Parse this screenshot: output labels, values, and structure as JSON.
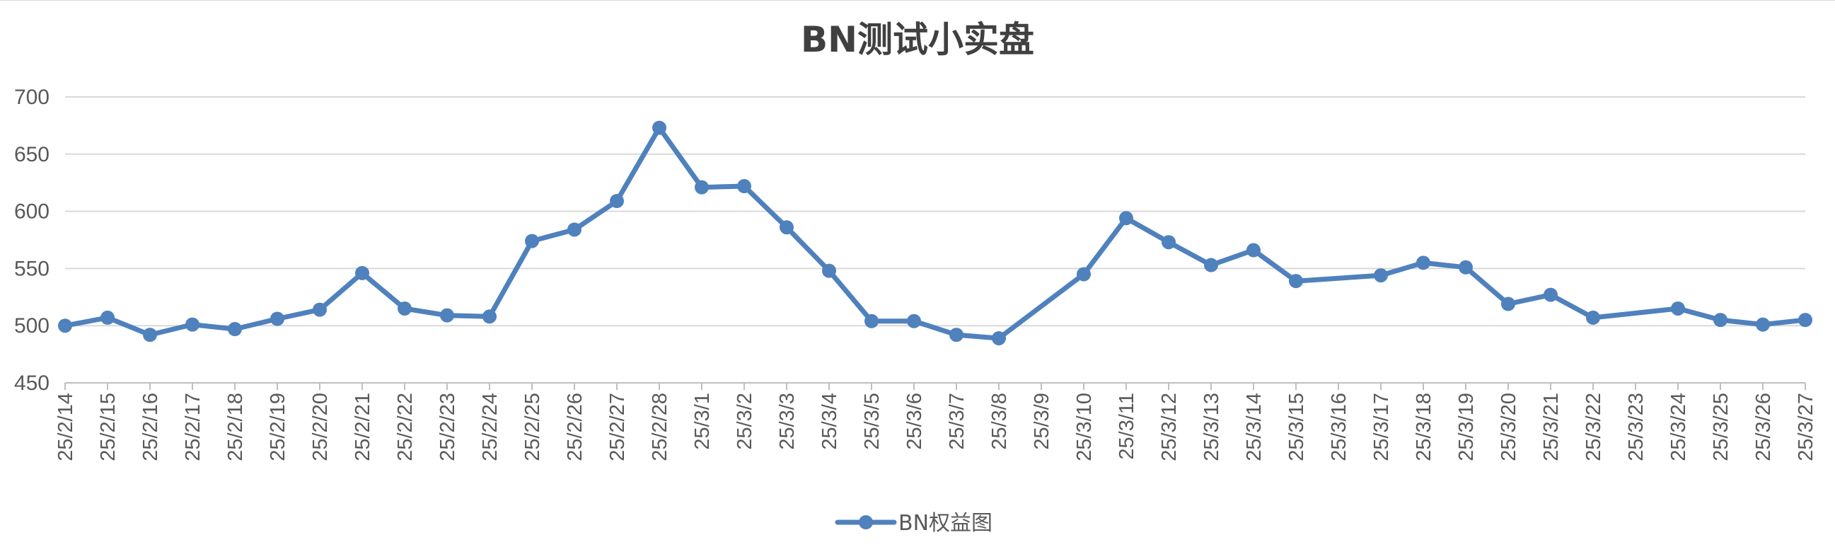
{
  "chart_data": {
    "type": "line",
    "title": "BN测试小实盘",
    "xlabel": "",
    "ylabel": "",
    "ylim": [
      450,
      700
    ],
    "yticks": [
      450,
      500,
      550,
      600,
      650,
      700
    ],
    "grid": true,
    "legend_position": "bottom",
    "categories": [
      "25/2/14",
      "25/2/15",
      "25/2/16",
      "25/2/17",
      "25/2/18",
      "25/2/19",
      "25/2/20",
      "25/2/21",
      "25/2/22",
      "25/2/23",
      "25/2/24",
      "25/2/25",
      "25/2/26",
      "25/2/27",
      "25/2/28",
      "25/3/1",
      "25/3/2",
      "25/3/3",
      "25/3/4",
      "25/3/5",
      "25/3/6",
      "25/3/7",
      "25/3/8",
      "25/3/9",
      "25/3/10",
      "25/3/11",
      "25/3/12",
      "25/3/13",
      "25/3/14",
      "25/3/15",
      "25/3/16",
      "25/3/17",
      "25/3/18",
      "25/3/19",
      "25/3/20",
      "25/3/21",
      "25/3/22",
      "25/3/23",
      "25/3/24",
      "25/3/25",
      "25/3/26",
      "25/3/27"
    ],
    "series": [
      {
        "name": "BN权益图",
        "color": "#4f81bd",
        "values": [
          500,
          507,
          492,
          501,
          497,
          506,
          514,
          546,
          515,
          509,
          508,
          574,
          584,
          609,
          673,
          621,
          622,
          586,
          548,
          504,
          504,
          492,
          489,
          null,
          545,
          594,
          573,
          553,
          566,
          539,
          null,
          544,
          555,
          551,
          519,
          527,
          507,
          null,
          515,
          505,
          501,
          505
        ]
      }
    ]
  }
}
